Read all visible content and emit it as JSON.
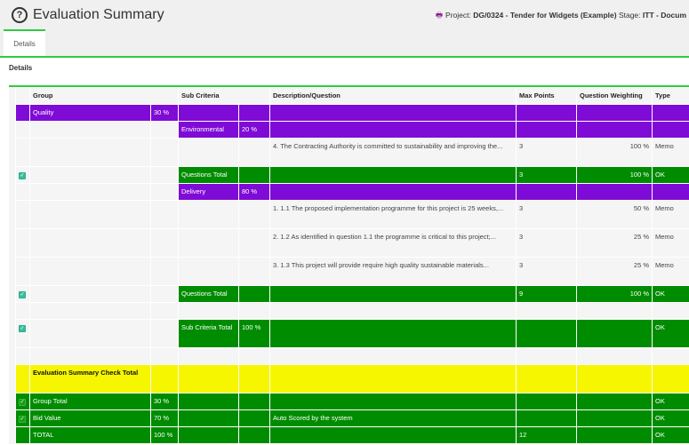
{
  "header": {
    "title": "Evaluation Summary",
    "icon": "help-circle-icon",
    "project_label": "Project:",
    "project_value": "DG/0324 - Tender for Widgets (Example)",
    "stage_label": "Stage:",
    "stage_value": "ITT - Docum"
  },
  "tabs": [
    {
      "label": "Details"
    }
  ],
  "panel_title": "Details",
  "colors": {
    "purple": "#7f0bd6",
    "green": "#008c00",
    "yellow": "#f6f600",
    "accent": "#2ecc40"
  },
  "columns": [
    "Group",
    "Sub Criteria",
    "Description/Question",
    "Max Points",
    "Question Weighting",
    "Type"
  ],
  "rows": [
    {
      "fill": "p",
      "from": 0,
      "cells": [
        "",
        "Quality",
        "30 %",
        "",
        "",
        "",
        "",
        "",
        ""
      ]
    },
    {
      "fill": "p",
      "from": 3,
      "cells": [
        "",
        "",
        "",
        "Environmental",
        "20 %",
        "",
        "",
        "",
        ""
      ]
    },
    {
      "fill": "w",
      "from": 9,
      "tall": true,
      "cells": [
        "",
        "",
        "",
        "",
        "",
        "4. The Contracting Authority is committed to sustainability and improving the...",
        "3",
        "100 %",
        "Memo"
      ]
    },
    {
      "fill": "g",
      "from": 3,
      "check": true,
      "cells": [
        "",
        "",
        "",
        "Questions Total",
        "",
        "",
        "3",
        "100 %",
        "OK"
      ]
    },
    {
      "fill": "p",
      "from": 3,
      "cells": [
        "",
        "",
        "",
        "Delivery",
        "80 %",
        "",
        "",
        "",
        ""
      ]
    },
    {
      "fill": "w",
      "from": 9,
      "tall": true,
      "cells": [
        "",
        "",
        "",
        "",
        "",
        "1. 1.1 The proposed implementation programme for this project is 25 weeks,...",
        "3",
        "50 %",
        "Memo"
      ]
    },
    {
      "fill": "w",
      "from": 9,
      "tall": true,
      "cells": [
        "",
        "",
        "",
        "",
        "",
        "2. 1.2 As identified in question 1.1 the programme is critical to this project;...",
        "3",
        "25 %",
        "Memo"
      ]
    },
    {
      "fill": "w",
      "from": 9,
      "tall": true,
      "cells": [
        "",
        "",
        "",
        "",
        "",
        "3. 1.3 This project will provide require high quality sustainable materials...",
        "3",
        "25 %",
        "Memo"
      ]
    },
    {
      "fill": "g",
      "from": 3,
      "check": true,
      "cells": [
        "",
        "",
        "",
        "Questions Total",
        "",
        "",
        "9",
        "100 %",
        "OK"
      ]
    },
    {
      "fill": "w",
      "from": 9,
      "cells": [
        "",
        "",
        "",
        "",
        "",
        "",
        "",
        "",
        ""
      ]
    },
    {
      "fill": "g",
      "from": 3,
      "check": true,
      "tall": true,
      "cells": [
        "",
        "",
        "",
        "Sub Criteria Total",
        "100 %",
        "",
        "",
        "",
        "OK"
      ]
    },
    {
      "fill": "w",
      "from": 9,
      "cells": [
        "",
        "",
        "",
        "",
        "",
        "",
        "",
        "",
        ""
      ]
    },
    {
      "fill": "y",
      "from": 0,
      "tall": true,
      "cells": [
        "",
        "Evaluation Summary Check Total",
        "",
        "",
        "",
        "",
        "",
        "",
        ""
      ]
    },
    {
      "fill": "g",
      "from": 0,
      "check": true,
      "cells": [
        "",
        "Group Total",
        "30 %",
        "",
        "",
        "",
        "",
        "",
        "OK"
      ]
    },
    {
      "fill": "g",
      "from": 0,
      "check": true,
      "cells": [
        "",
        "Bid Value",
        "70 %",
        "",
        "",
        "Auto Scored by the system",
        "",
        "",
        "OK"
      ]
    },
    {
      "fill": "g",
      "from": 0,
      "cells": [
        "",
        "TOTAL",
        "100 %",
        "",
        "",
        "",
        "12",
        "",
        "OK"
      ]
    }
  ]
}
